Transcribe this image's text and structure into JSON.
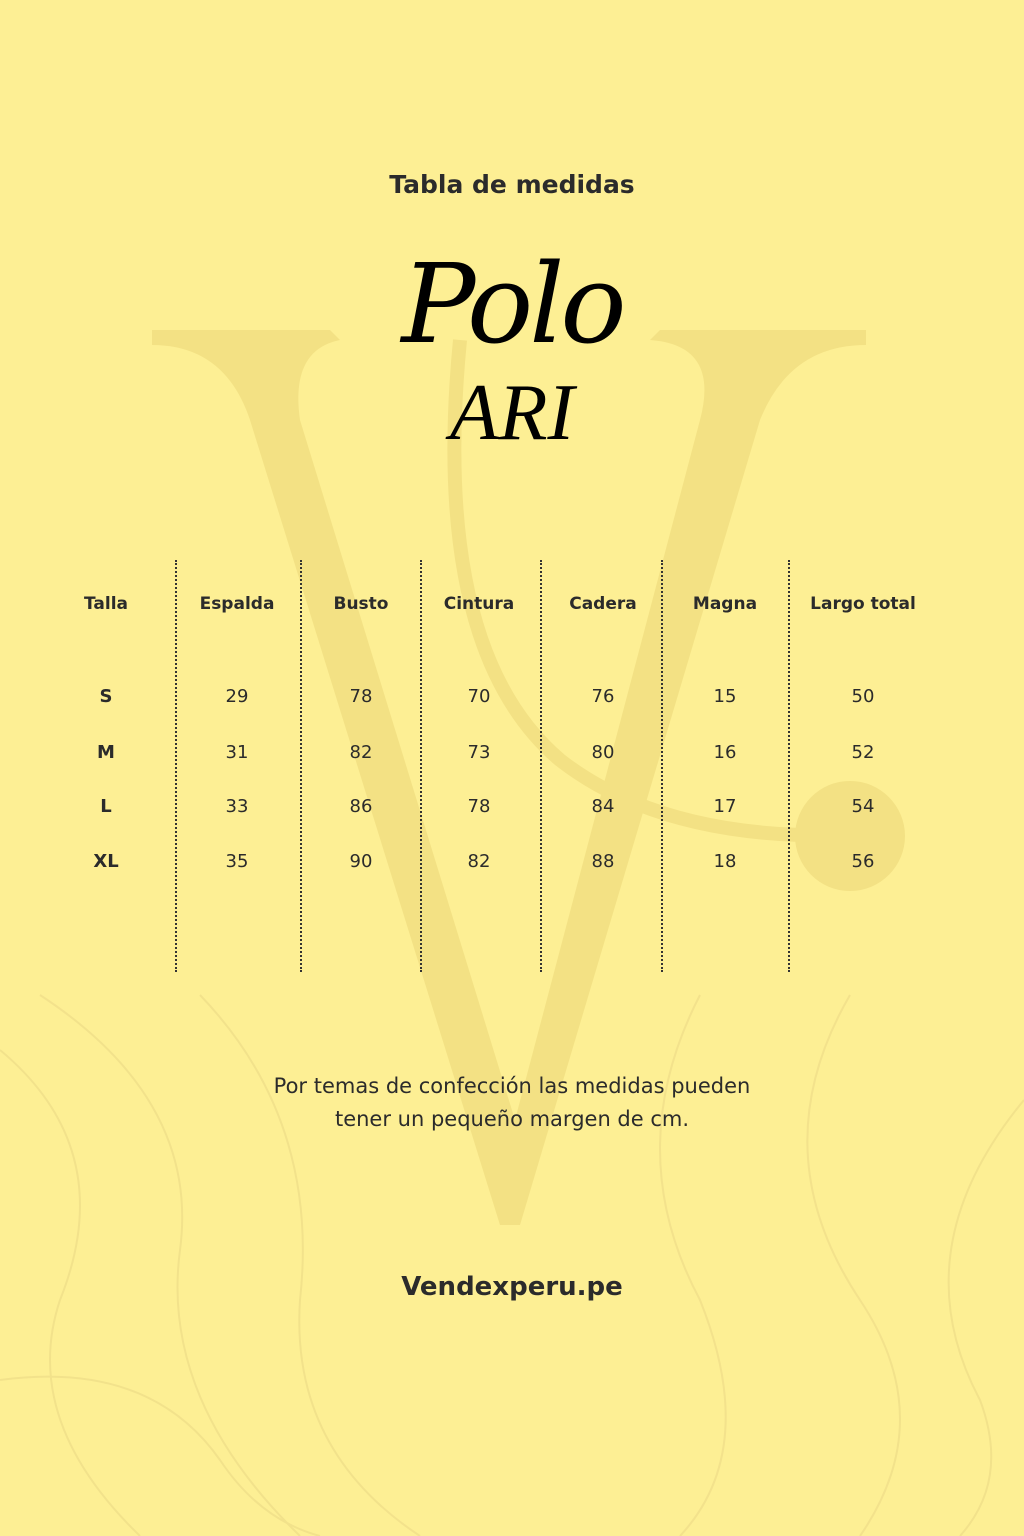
{
  "title": "Tabla de medidas",
  "logo": {
    "line1": "Polo",
    "line2": "ARI"
  },
  "table": {
    "headers": [
      "Talla",
      "Espalda",
      "Busto",
      "Cintura",
      "Cadera",
      "Magna",
      "Largo total"
    ],
    "rows": [
      [
        "S",
        "29",
        "78",
        "70",
        "76",
        "15",
        "50"
      ],
      [
        "M",
        "31",
        "82",
        "73",
        "80",
        "16",
        "52"
      ],
      [
        "L",
        "33",
        "86",
        "78",
        "84",
        "17",
        "54"
      ],
      [
        "XL",
        "35",
        "90",
        "82",
        "88",
        "18",
        "56"
      ]
    ]
  },
  "note": {
    "line1": "Por temas de confección las medidas pueden",
    "line2": "tener un pequeño margen de cm."
  },
  "website": "Vendexperu.pe",
  "colors": {
    "background": "#fdef94",
    "text": "#2b2b2b",
    "watermark": "#f3e184"
  }
}
